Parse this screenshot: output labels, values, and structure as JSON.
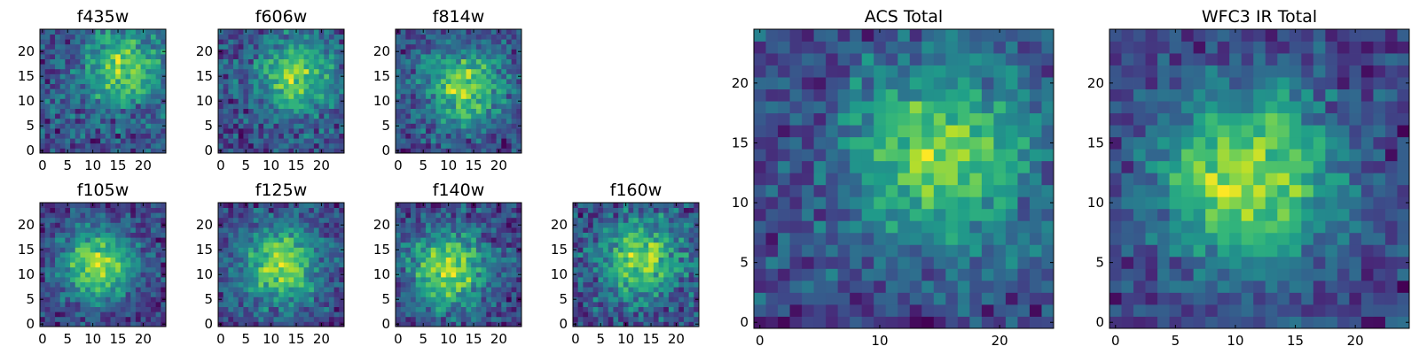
{
  "colormap": "viridis",
  "colormap_stops": [
    "#440154",
    "#482878",
    "#3e4989",
    "#31688e",
    "#26828e",
    "#1f9e89",
    "#35b779",
    "#6ece58",
    "#b5de2b",
    "#fde725"
  ],
  "chart_data": [
    {
      "type": "heatmap",
      "title": "f435w",
      "grid_size": 25,
      "xlim": [
        -0.5,
        24.5
      ],
      "ylim": [
        -0.5,
        24.5
      ],
      "xticks": [
        0,
        5,
        10,
        15,
        20
      ],
      "yticks": [
        0,
        5,
        10,
        15,
        20
      ],
      "peak": [
        16,
        17
      ],
      "noise": 0.55,
      "seed": 11
    },
    {
      "type": "heatmap",
      "title": "f606w",
      "grid_size": 25,
      "xlim": [
        -0.5,
        24.5
      ],
      "ylim": [
        -0.5,
        24.5
      ],
      "xticks": [
        0,
        5,
        10,
        15,
        20
      ],
      "yticks": [
        0,
        5,
        10,
        15,
        20
      ],
      "peak": [
        15,
        15
      ],
      "noise": 0.5,
      "seed": 23
    },
    {
      "type": "heatmap",
      "title": "f814w",
      "grid_size": 25,
      "xlim": [
        -0.5,
        24.5
      ],
      "ylim": [
        -0.5,
        24.5
      ],
      "xticks": [
        0,
        5,
        10,
        15,
        20
      ],
      "yticks": [
        0,
        5,
        10,
        15,
        20
      ],
      "peak": [
        13,
        13
      ],
      "noise": 0.45,
      "seed": 37
    },
    {
      "type": "heatmap",
      "title": "f105w",
      "grid_size": 25,
      "xlim": [
        -0.5,
        24.5
      ],
      "ylim": [
        -0.5,
        24.5
      ],
      "xticks": [
        0,
        5,
        10,
        15,
        20
      ],
      "yticks": [
        0,
        5,
        10,
        15,
        20
      ],
      "peak": [
        11,
        12
      ],
      "noise": 0.35,
      "seed": 41
    },
    {
      "type": "heatmap",
      "title": "f125w",
      "grid_size": 25,
      "xlim": [
        -0.5,
        24.5
      ],
      "ylim": [
        -0.5,
        24.5
      ],
      "xticks": [
        0,
        5,
        10,
        15,
        20
      ],
      "yticks": [
        0,
        5,
        10,
        15,
        20
      ],
      "peak": [
        12,
        12
      ],
      "noise": 0.4,
      "seed": 53
    },
    {
      "type": "heatmap",
      "title": "f140w",
      "grid_size": 25,
      "xlim": [
        -0.5,
        24.5
      ],
      "ylim": [
        -0.5,
        24.5
      ],
      "xticks": [
        0,
        5,
        10,
        15,
        20
      ],
      "yticks": [
        0,
        5,
        10,
        15,
        20
      ],
      "peak": [
        10,
        11
      ],
      "noise": 0.4,
      "seed": 67
    },
    {
      "type": "heatmap",
      "title": "f160w",
      "grid_size": 25,
      "xlim": [
        -0.5,
        24.5
      ],
      "ylim": [
        -0.5,
        24.5
      ],
      "xticks": [
        0,
        5,
        10,
        15,
        20
      ],
      "yticks": [
        0,
        5,
        10,
        15,
        20
      ],
      "peak": [
        13,
        13
      ],
      "noise": 0.5,
      "seed": 79
    },
    {
      "type": "heatmap",
      "title": "ACS Total",
      "grid_size": 25,
      "xlim": [
        -0.5,
        24.5
      ],
      "ylim": [
        -0.5,
        24.5
      ],
      "xticks": [
        0,
        10,
        20
      ],
      "yticks": [
        0,
        5,
        10,
        15,
        20
      ],
      "peak": [
        15,
        14
      ],
      "noise": 0.4,
      "seed": 97
    },
    {
      "type": "heatmap",
      "title": "WFC3 IR Total",
      "grid_size": 25,
      "xlim": [
        -0.5,
        24.5
      ],
      "ylim": [
        -0.5,
        24.5
      ],
      "xticks": [
        0,
        5,
        10,
        15,
        20
      ],
      "yticks": [
        0,
        5,
        10,
        15,
        20
      ],
      "peak": [
        11,
        12
      ],
      "noise": 0.3,
      "seed": 103
    }
  ]
}
